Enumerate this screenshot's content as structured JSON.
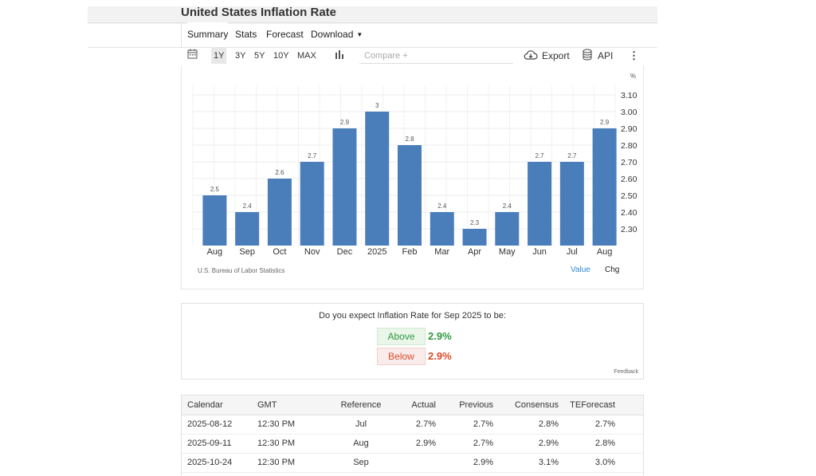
{
  "page": {
    "title": "United States Inflation Rate"
  },
  "tabs": [
    {
      "label": "Summary",
      "active": true
    },
    {
      "label": "Stats"
    },
    {
      "label": "Forecast"
    },
    {
      "label": "Download",
      "has_caret": true
    }
  ],
  "toolbar": {
    "calendar_icon": "calendar-icon",
    "ranges": [
      "1Y",
      "3Y",
      "5Y",
      "10Y",
      "MAX"
    ],
    "selected_range": "1Y",
    "chart_type_icon": "bar-chart-icon",
    "compare_placeholder": "Compare +",
    "export_label": "Export",
    "export_icon": "cloud-download-icon",
    "api_label": "API",
    "api_icon": "database-icon",
    "more_icon": "vertical-dots-icon"
  },
  "chart": {
    "source": "U.S. Bureau of Labor Statistics",
    "value_toggle": "Value",
    "chg_toggle": "Chg"
  },
  "chart_data": {
    "type": "bar",
    "categories": [
      "Aug",
      "Sep",
      "Oct",
      "Nov",
      "Dec",
      "2025",
      "Feb",
      "Mar",
      "Apr",
      "May",
      "Jun",
      "Jul",
      "Aug"
    ],
    "values": [
      2.5,
      2.4,
      2.6,
      2.7,
      2.9,
      3.0,
      2.8,
      2.4,
      2.3,
      2.4,
      2.7,
      2.7,
      2.9
    ],
    "data_labels": [
      "2.5",
      "2.4",
      "2.6",
      "2.7",
      "2.9",
      "3",
      "2.8",
      "2.4",
      "2.3",
      "2.4",
      "2.7",
      "2.7",
      "2.9"
    ],
    "unit_label": "%",
    "y_ticks": [
      "3.10",
      "3.00",
      "2.90",
      "2.80",
      "2.70",
      "2.60",
      "2.50",
      "2.40",
      "2.30"
    ],
    "ylim": [
      2.2,
      3.2
    ],
    "y_axis_side": "right",
    "grid": true,
    "bar_color": "#4a7ebb"
  },
  "poll": {
    "question": "Do you expect Inflation Rate for Sep 2025 to be:",
    "above_label": "Above",
    "above_value": "2.9%",
    "below_label": "Below",
    "below_value": "2.9%",
    "feedback": "Feedback",
    "above_color": "#2e9a3e",
    "below_color": "#d94c2a"
  },
  "calendar": {
    "headers": [
      "Calendar",
      "GMT",
      "Reference",
      "Actual",
      "Previous",
      "Consensus",
      "TEForecast"
    ],
    "rows": [
      [
        "2025-08-12",
        "12:30 PM",
        "Jul",
        "2.7%",
        "2.7%",
        "2.8%",
        "2.7%"
      ],
      [
        "2025-09-11",
        "12:30 PM",
        "Aug",
        "2.9%",
        "2.7%",
        "2.9%",
        "2.8%"
      ],
      [
        "2025-10-24",
        "12:30 PM",
        "Sep",
        "",
        "2.9%",
        "3.1%",
        "3.0%"
      ]
    ]
  }
}
